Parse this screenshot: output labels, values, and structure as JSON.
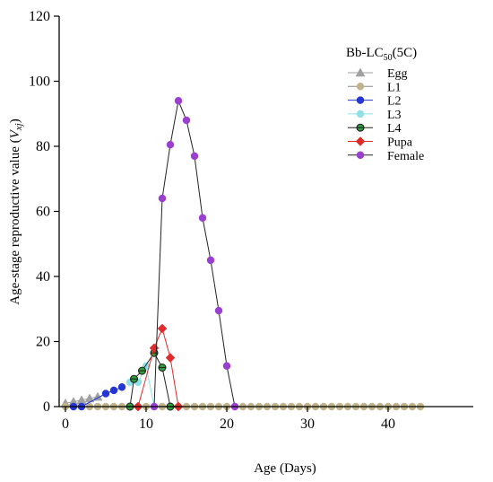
{
  "chart_data": {
    "type": "line",
    "title": "",
    "xlabel": "Age (Days)",
    "ylabel_main": "Age-stage reproductive value (",
    "ylabel_var": "V",
    "ylabel_sub": "xj",
    "ylabel_end": ")",
    "xlim": [
      0,
      48
    ],
    "ylim": [
      0,
      120
    ],
    "xticks": [
      "0",
      "10",
      "20",
      "30",
      "40"
    ],
    "yticks": [
      "0",
      "20",
      "40",
      "60",
      "80",
      "100",
      "120"
    ],
    "grid": false,
    "legend": {
      "placement": "top-right",
      "title_main": "Bb-LC",
      "title_sub": "50",
      "title_end": "(5C)"
    },
    "series": [
      {
        "name": "Egg",
        "color": "#a0a0a0",
        "line_color": "#a0a0a0",
        "marker": "triangle",
        "points": [
          [
            0,
            1
          ],
          [
            1,
            1.5
          ],
          [
            2,
            2
          ],
          [
            3,
            2.5
          ],
          [
            4,
            3
          ]
        ]
      },
      {
        "name": "L1",
        "color": "#c2b48a",
        "line_color": "#8c8c8c",
        "marker": "circle",
        "points": [
          [
            0,
            0
          ],
          [
            1,
            0
          ],
          [
            2,
            0
          ],
          [
            3,
            0
          ],
          [
            4,
            0
          ],
          [
            5,
            0
          ],
          [
            6,
            0
          ],
          [
            7,
            0
          ],
          [
            8,
            0
          ],
          [
            9,
            0
          ],
          [
            10,
            0
          ],
          [
            11,
            0
          ],
          [
            12,
            0
          ],
          [
            13,
            0
          ],
          [
            14,
            0
          ],
          [
            15,
            0
          ],
          [
            16,
            0
          ],
          [
            17,
            0
          ],
          [
            18,
            0
          ],
          [
            19,
            0
          ],
          [
            20,
            0
          ],
          [
            21,
            0
          ],
          [
            22,
            0
          ],
          [
            23,
            0
          ],
          [
            24,
            0
          ],
          [
            25,
            0
          ],
          [
            26,
            0
          ],
          [
            27,
            0
          ],
          [
            28,
            0
          ],
          [
            29,
            0
          ],
          [
            30,
            0
          ],
          [
            31,
            0
          ],
          [
            32,
            0
          ],
          [
            33,
            0
          ],
          [
            34,
            0
          ],
          [
            35,
            0
          ],
          [
            36,
            0
          ],
          [
            37,
            0
          ],
          [
            38,
            0
          ],
          [
            39,
            0
          ],
          [
            40,
            0
          ],
          [
            41,
            0
          ],
          [
            42,
            0
          ],
          [
            43,
            0
          ],
          [
            44,
            0
          ]
        ]
      },
      {
        "name": "L2",
        "color": "#2436d6",
        "line_color": "#2436d6",
        "marker": "circle",
        "points": [
          [
            1,
            0
          ],
          [
            2,
            0
          ],
          [
            5,
            4
          ],
          [
            6,
            5
          ],
          [
            7,
            6
          ]
        ]
      },
      {
        "name": "L3",
        "color": "#8fe0e8",
        "line_color": "#8fe0e8",
        "marker": "circle",
        "points": [
          [
            8,
            7.5
          ],
          [
            9,
            7.5
          ],
          [
            10,
            12.5
          ],
          [
            11,
            0
          ]
        ]
      },
      {
        "name": "L4",
        "color": "#2e9e3e",
        "line_color": "#222222",
        "marker": "circle-half",
        "points": [
          [
            8,
            0
          ],
          [
            8.5,
            8.5
          ],
          [
            9.5,
            11
          ],
          [
            11,
            16.5
          ],
          [
            12,
            12
          ],
          [
            13,
            0
          ]
        ]
      },
      {
        "name": "Pupa",
        "color": "#e02b2b",
        "line_color": "#e02b2b",
        "marker": "diamond",
        "points": [
          [
            9,
            0
          ],
          [
            11,
            18
          ],
          [
            12,
            24
          ],
          [
            13,
            15
          ],
          [
            14,
            0
          ]
        ]
      },
      {
        "name": "Female",
        "color": "#9b3fd1",
        "line_color": "#222222",
        "marker": "circle",
        "points": [
          [
            11,
            0
          ],
          [
            12,
            64
          ],
          [
            13,
            80.5
          ],
          [
            14,
            94
          ],
          [
            15,
            88
          ],
          [
            16,
            77
          ],
          [
            17,
            58
          ],
          [
            18,
            45
          ],
          [
            19,
            29.5
          ],
          [
            20,
            12.5
          ],
          [
            21,
            0
          ]
        ]
      }
    ]
  }
}
